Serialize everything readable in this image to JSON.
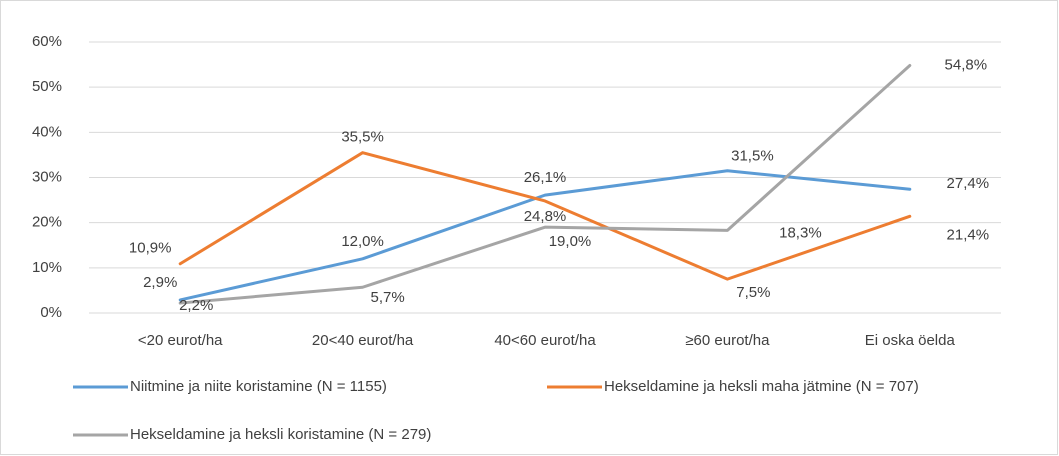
{
  "chart_data": {
    "type": "line",
    "categories": [
      "<20 eurot/ha",
      "20<40 eurot/ha",
      "40<60 eurot/ha",
      "≥60 eurot/ha",
      "Ei oska öelda"
    ],
    "series": [
      {
        "name": "Niitmine ja niite koristamine (N = 1155)",
        "color": "#5b9bd5",
        "values": [
          2.9,
          12.0,
          26.1,
          31.5,
          27.4
        ],
        "value_labels": [
          "2,9%",
          "12,0%",
          "26,1%",
          "31,5%",
          "27,4%"
        ]
      },
      {
        "name": "Hekseldamine ja heksli maha jätmine (N = 707)",
        "color": "#ed7d31",
        "values": [
          10.9,
          35.5,
          24.8,
          7.5,
          21.4
        ],
        "value_labels": [
          "10,9%",
          "35,5%",
          "24,8%",
          "7,5%",
          "21,4%"
        ]
      },
      {
        "name": "Hekseldamine ja heksli koristamine (N = 279)",
        "color": "#a5a5a5",
        "values": [
          2.2,
          5.7,
          19.0,
          18.3,
          54.8
        ],
        "value_labels": [
          "2,2%",
          "5,7%",
          "19,0%",
          "18,3%",
          "54,8%"
        ]
      }
    ],
    "ylim": [
      0,
      60
    ],
    "yticks": [
      {
        "value": 0,
        "label": "0%"
      },
      {
        "value": 10,
        "label": "10%"
      },
      {
        "value": 20,
        "label": "20%"
      },
      {
        "value": 30,
        "label": "30%"
      },
      {
        "value": 40,
        "label": "40%"
      },
      {
        "value": 50,
        "label": "50%"
      },
      {
        "value": 60,
        "label": "60%"
      }
    ],
    "grid": true,
    "legend": "bottom"
  }
}
